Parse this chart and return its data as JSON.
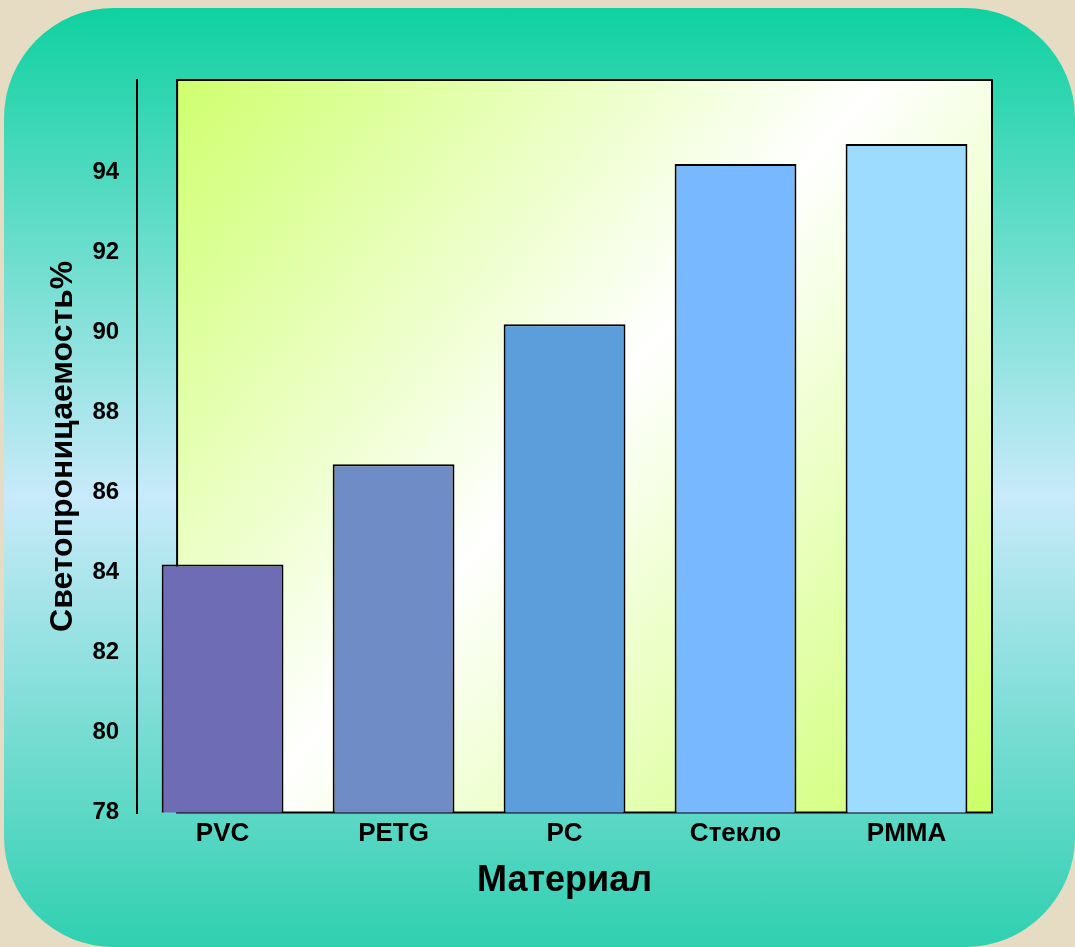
{
  "chart_data": {
    "type": "bar",
    "xlabel": "Материал",
    "ylabel": "Светопроницаемость%",
    "categories": [
      "PVC",
      "PETG",
      "PC",
      "Стекло",
      "PMMA"
    ],
    "values": [
      84.2,
      86.7,
      90.2,
      94.2,
      94.7
    ],
    "colors": [
      "#6e6cb4",
      "#6f8cc6",
      "#5c9edc",
      "#78b8ff",
      "#9edcff"
    ],
    "ylim": [
      78,
      96.3
    ],
    "yticks": [
      78,
      80,
      82,
      84,
      86,
      88,
      90,
      92,
      94
    ],
    "grid": false,
    "legend": false
  }
}
